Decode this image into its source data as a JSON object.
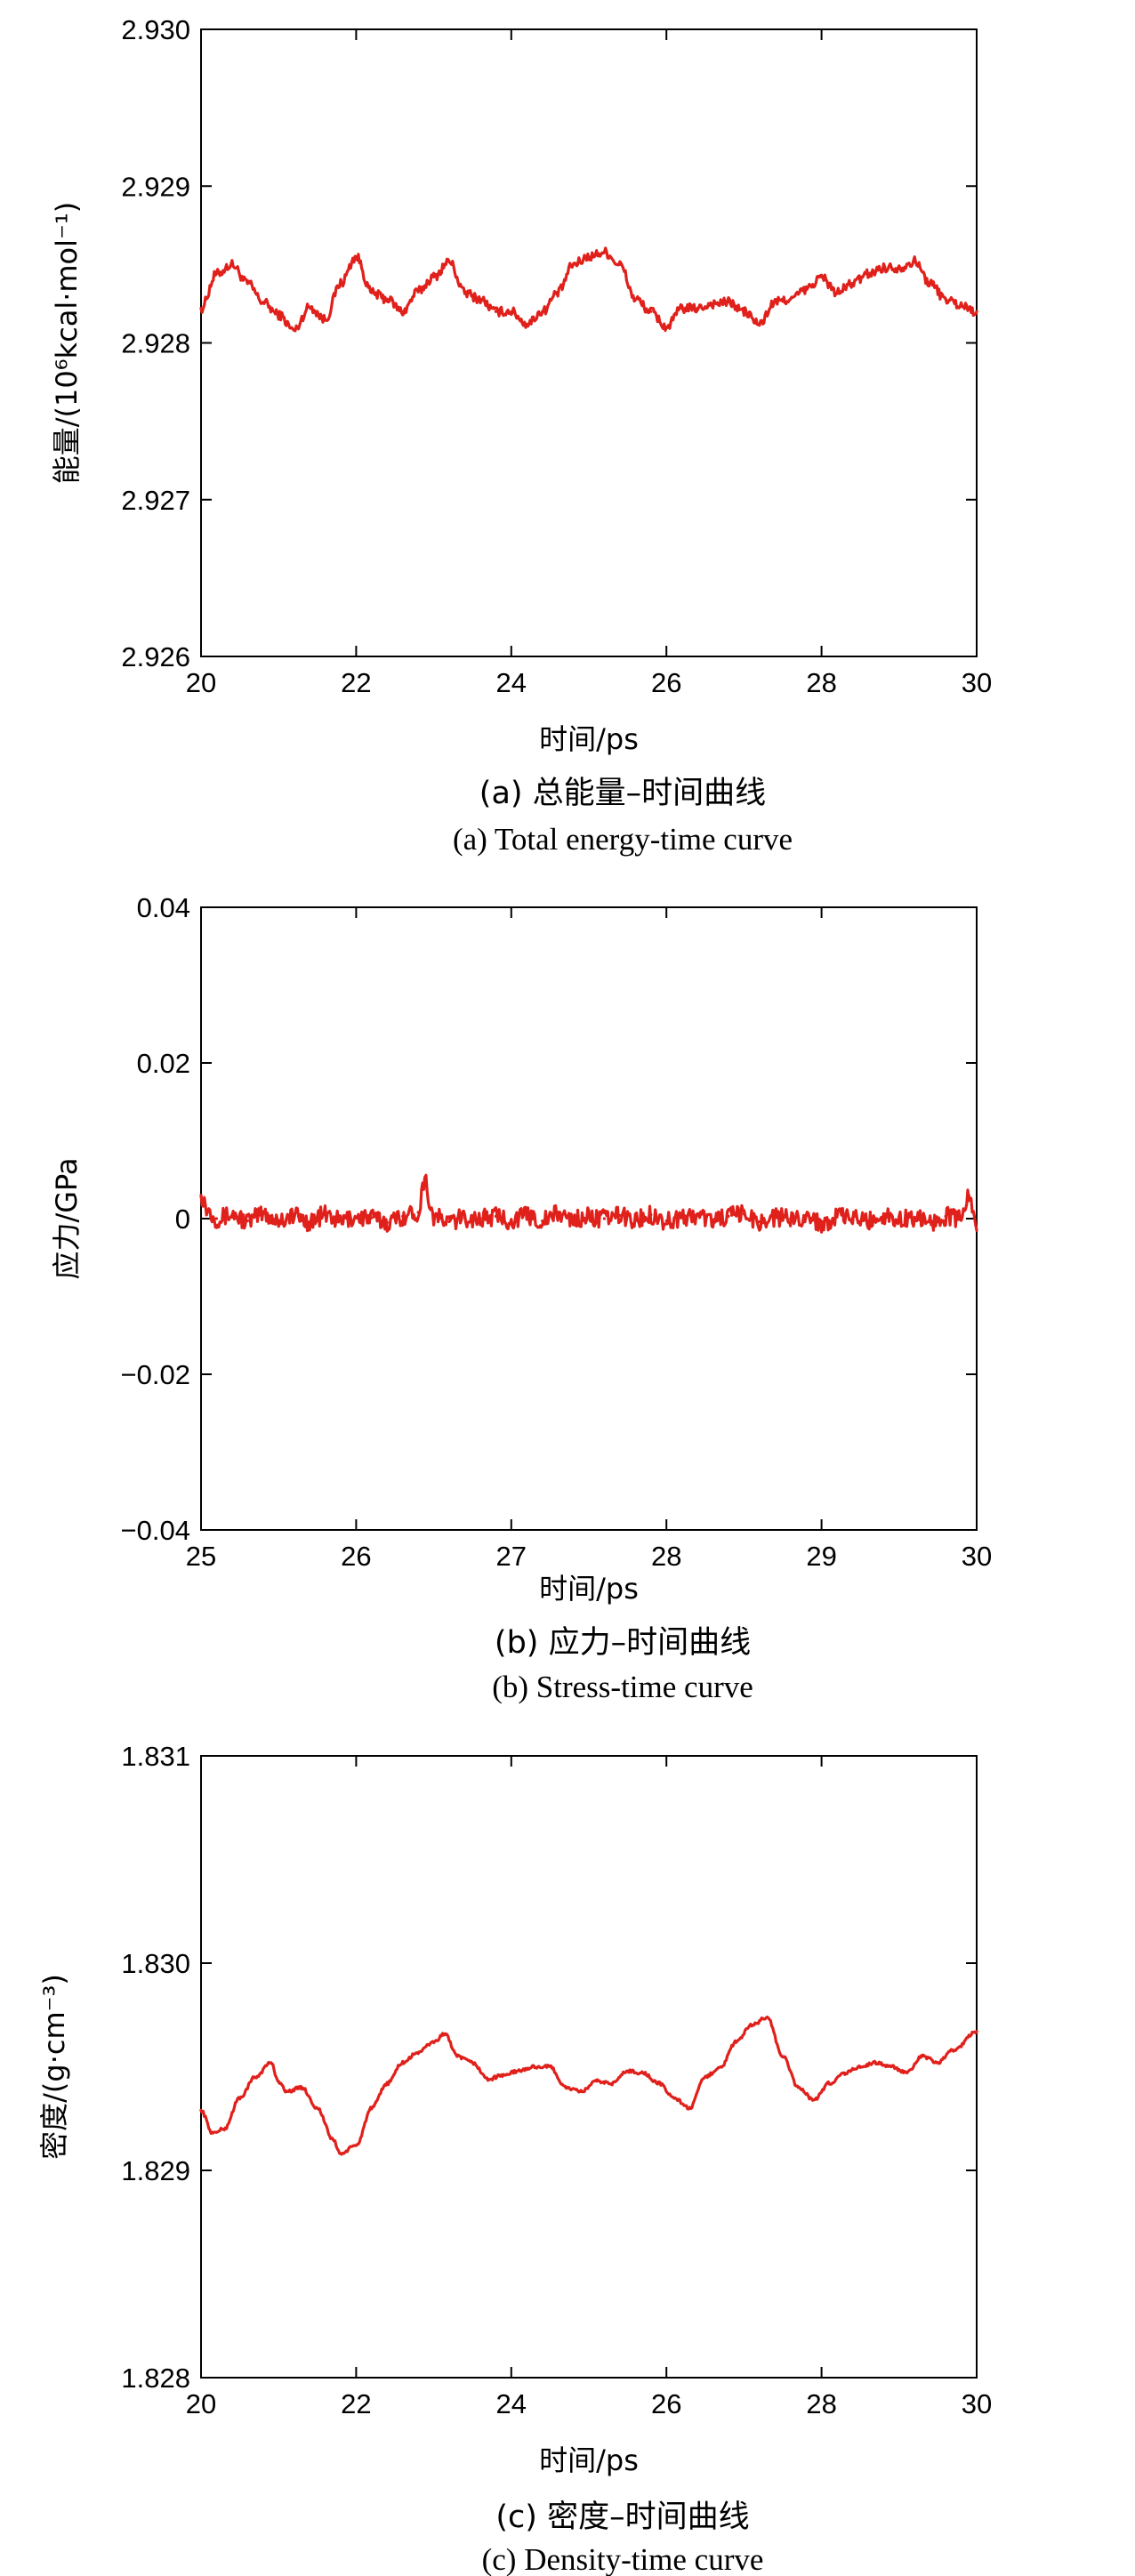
{
  "colors": {
    "series": "#e0201b",
    "axis": "#000000"
  },
  "chart_data": [
    {
      "type": "line",
      "title": "",
      "xlabel": "时间/ps",
      "ylabel": "能量/(10⁶kcal·mol⁻¹)",
      "caption_cn": "(a) 总能量–时间曲线",
      "caption_en": "(a) Total energy-time curve",
      "xlim": [
        20,
        30
      ],
      "ylim": [
        2.926,
        2.93
      ],
      "xticks": [
        "20",
        "22",
        "24",
        "26",
        "28",
        "30"
      ],
      "yticks": [
        "2.926",
        "2.927",
        "2.928",
        "2.929",
        "2.930"
      ],
      "noise": 3e-05,
      "series": [
        {
          "x": [
            20.0,
            20.2,
            20.4,
            20.6,
            20.8,
            21.0,
            21.2,
            21.4,
            21.6,
            21.8,
            22.0,
            22.2,
            22.4,
            22.6,
            22.8,
            23.0,
            23.2,
            23.4,
            23.6,
            23.8,
            24.0,
            24.2,
            24.4,
            24.6,
            24.8,
            25.0,
            25.2,
            25.4,
            25.6,
            25.8,
            26.0,
            26.2,
            26.4,
            26.6,
            26.8,
            27.0,
            27.2,
            27.4,
            27.6,
            27.8,
            28.0,
            28.2,
            28.4,
            28.6,
            28.8,
            29.0,
            29.2,
            29.4,
            29.6,
            29.8,
            30.0
          ],
          "y": [
            2.92822,
            2.92844,
            2.9285,
            2.92838,
            2.92826,
            2.92818,
            2.92808,
            2.92823,
            2.92815,
            2.92838,
            2.92855,
            2.92832,
            2.92828,
            2.9282,
            2.92833,
            2.92842,
            2.92852,
            2.92832,
            2.92828,
            2.9282,
            2.9282,
            2.92812,
            2.9282,
            2.92832,
            2.9285,
            2.92855,
            2.92858,
            2.9285,
            2.92828,
            2.9282,
            2.9281,
            2.92822,
            2.92822,
            2.92825,
            2.92826,
            2.9282,
            2.92812,
            2.92826,
            2.92828,
            2.92834,
            2.92842,
            2.92832,
            2.92838,
            2.92844,
            2.92848,
            2.92848,
            2.92852,
            2.92838,
            2.92828,
            2.92824,
            2.9282
          ]
        }
      ]
    },
    {
      "type": "line",
      "title": "",
      "xlabel": "时间/ps",
      "ylabel": "应力/GPa",
      "caption_cn": "(b) 应力–时间曲线",
      "caption_en": "(b) Stress-time curve",
      "xlim": [
        25,
        30
      ],
      "ylim": [
        -0.04,
        0.04
      ],
      "xticks": [
        "25",
        "26",
        "27",
        "28",
        "29",
        "30"
      ],
      "yticks": [
        "−0.04",
        "−0.02",
        "0",
        "0.02",
        "0.04"
      ],
      "noise": 0.0012,
      "series": [
        {
          "x": [
            25.0,
            25.05,
            25.1,
            25.2,
            25.3,
            25.4,
            25.5,
            25.6,
            25.7,
            25.8,
            25.9,
            26.0,
            26.1,
            26.2,
            26.3,
            26.4,
            26.44,
            26.5,
            26.6,
            26.7,
            26.8,
            26.9,
            27.0,
            27.1,
            27.2,
            27.3,
            27.4,
            27.5,
            27.6,
            27.7,
            27.8,
            27.9,
            28.0,
            28.1,
            28.2,
            28.3,
            28.4,
            28.5,
            28.6,
            28.7,
            28.8,
            28.9,
            29.0,
            29.1,
            29.2,
            29.3,
            29.4,
            29.5,
            29.6,
            29.7,
            29.8,
            29.9,
            29.95,
            30.0
          ],
          "y": [
            0.003,
            0.001,
            0.0,
            0.0005,
            -0.0003,
            0.0006,
            -0.0002,
            0.0004,
            -0.0004,
            0.0005,
            -0.0003,
            0.0002,
            0.0001,
            -0.0005,
            0.0003,
            0.0008,
            0.005,
            0.0002,
            -0.0004,
            0.0001,
            0.0,
            0.0003,
            -0.0002,
            0.0004,
            -0.0003,
            0.0006,
            -0.0001,
            0.0002,
            0.0,
            0.0004,
            -0.0002,
            0.0005,
            -0.0003,
            0.0001,
            0.0004,
            -0.0002,
            0.0003,
            0.0006,
            -0.0004,
            0.0002,
            0.0,
            0.0003,
            -0.0006,
            0.0002,
            0.0001,
            -0.0003,
            0.0004,
            -0.0001,
            0.0002,
            -0.0004,
            0.0003,
            0.0,
            0.003,
            -0.0015
          ]
        }
      ]
    },
    {
      "type": "line",
      "title": "",
      "xlabel": "时间/ps",
      "ylabel": "密度/(g·cm⁻³)",
      "caption_cn": "(c) 密度–时间曲线",
      "caption_en": "(c) Density-time curve",
      "xlim": [
        20,
        30
      ],
      "ylim": [
        1.828,
        1.831
      ],
      "xticks": [
        "20",
        "22",
        "24",
        "26",
        "28",
        "30"
      ],
      "yticks": [
        "1.828",
        "1.829",
        "1.830",
        "1.831"
      ],
      "noise": 8e-06,
      "series": [
        {
          "x": [
            20.0,
            20.15,
            20.3,
            20.5,
            20.7,
            20.9,
            21.0,
            21.1,
            21.3,
            21.5,
            21.7,
            21.8,
            22.0,
            22.2,
            22.4,
            22.6,
            22.8,
            23.0,
            23.15,
            23.3,
            23.5,
            23.7,
            23.9,
            24.1,
            24.3,
            24.5,
            24.7,
            24.9,
            25.1,
            25.3,
            25.5,
            25.7,
            25.9,
            26.1,
            26.3,
            26.5,
            26.7,
            26.9,
            27.1,
            27.3,
            27.5,
            27.7,
            27.9,
            28.1,
            28.3,
            28.5,
            28.7,
            28.9,
            29.1,
            29.3,
            29.5,
            29.7,
            30.0
          ],
          "y": [
            1.82929,
            1.82918,
            1.8292,
            1.82935,
            1.82945,
            1.82952,
            1.82943,
            1.82938,
            1.8294,
            1.8293,
            1.82915,
            1.82908,
            1.82912,
            1.8293,
            1.82942,
            1.82952,
            1.82957,
            1.82962,
            1.82966,
            1.82955,
            1.82952,
            1.82944,
            1.82946,
            1.82948,
            1.8295,
            1.8295,
            1.8294,
            1.82938,
            1.82943,
            1.82942,
            1.82948,
            1.82947,
            1.82942,
            1.82935,
            1.8293,
            1.82945,
            1.8295,
            1.82962,
            1.8297,
            1.82974,
            1.82955,
            1.8294,
            1.82934,
            1.82942,
            1.82947,
            1.8295,
            1.82952,
            1.8295,
            1.82947,
            1.82955,
            1.82952,
            1.82958,
            1.82967
          ]
        }
      ]
    }
  ]
}
